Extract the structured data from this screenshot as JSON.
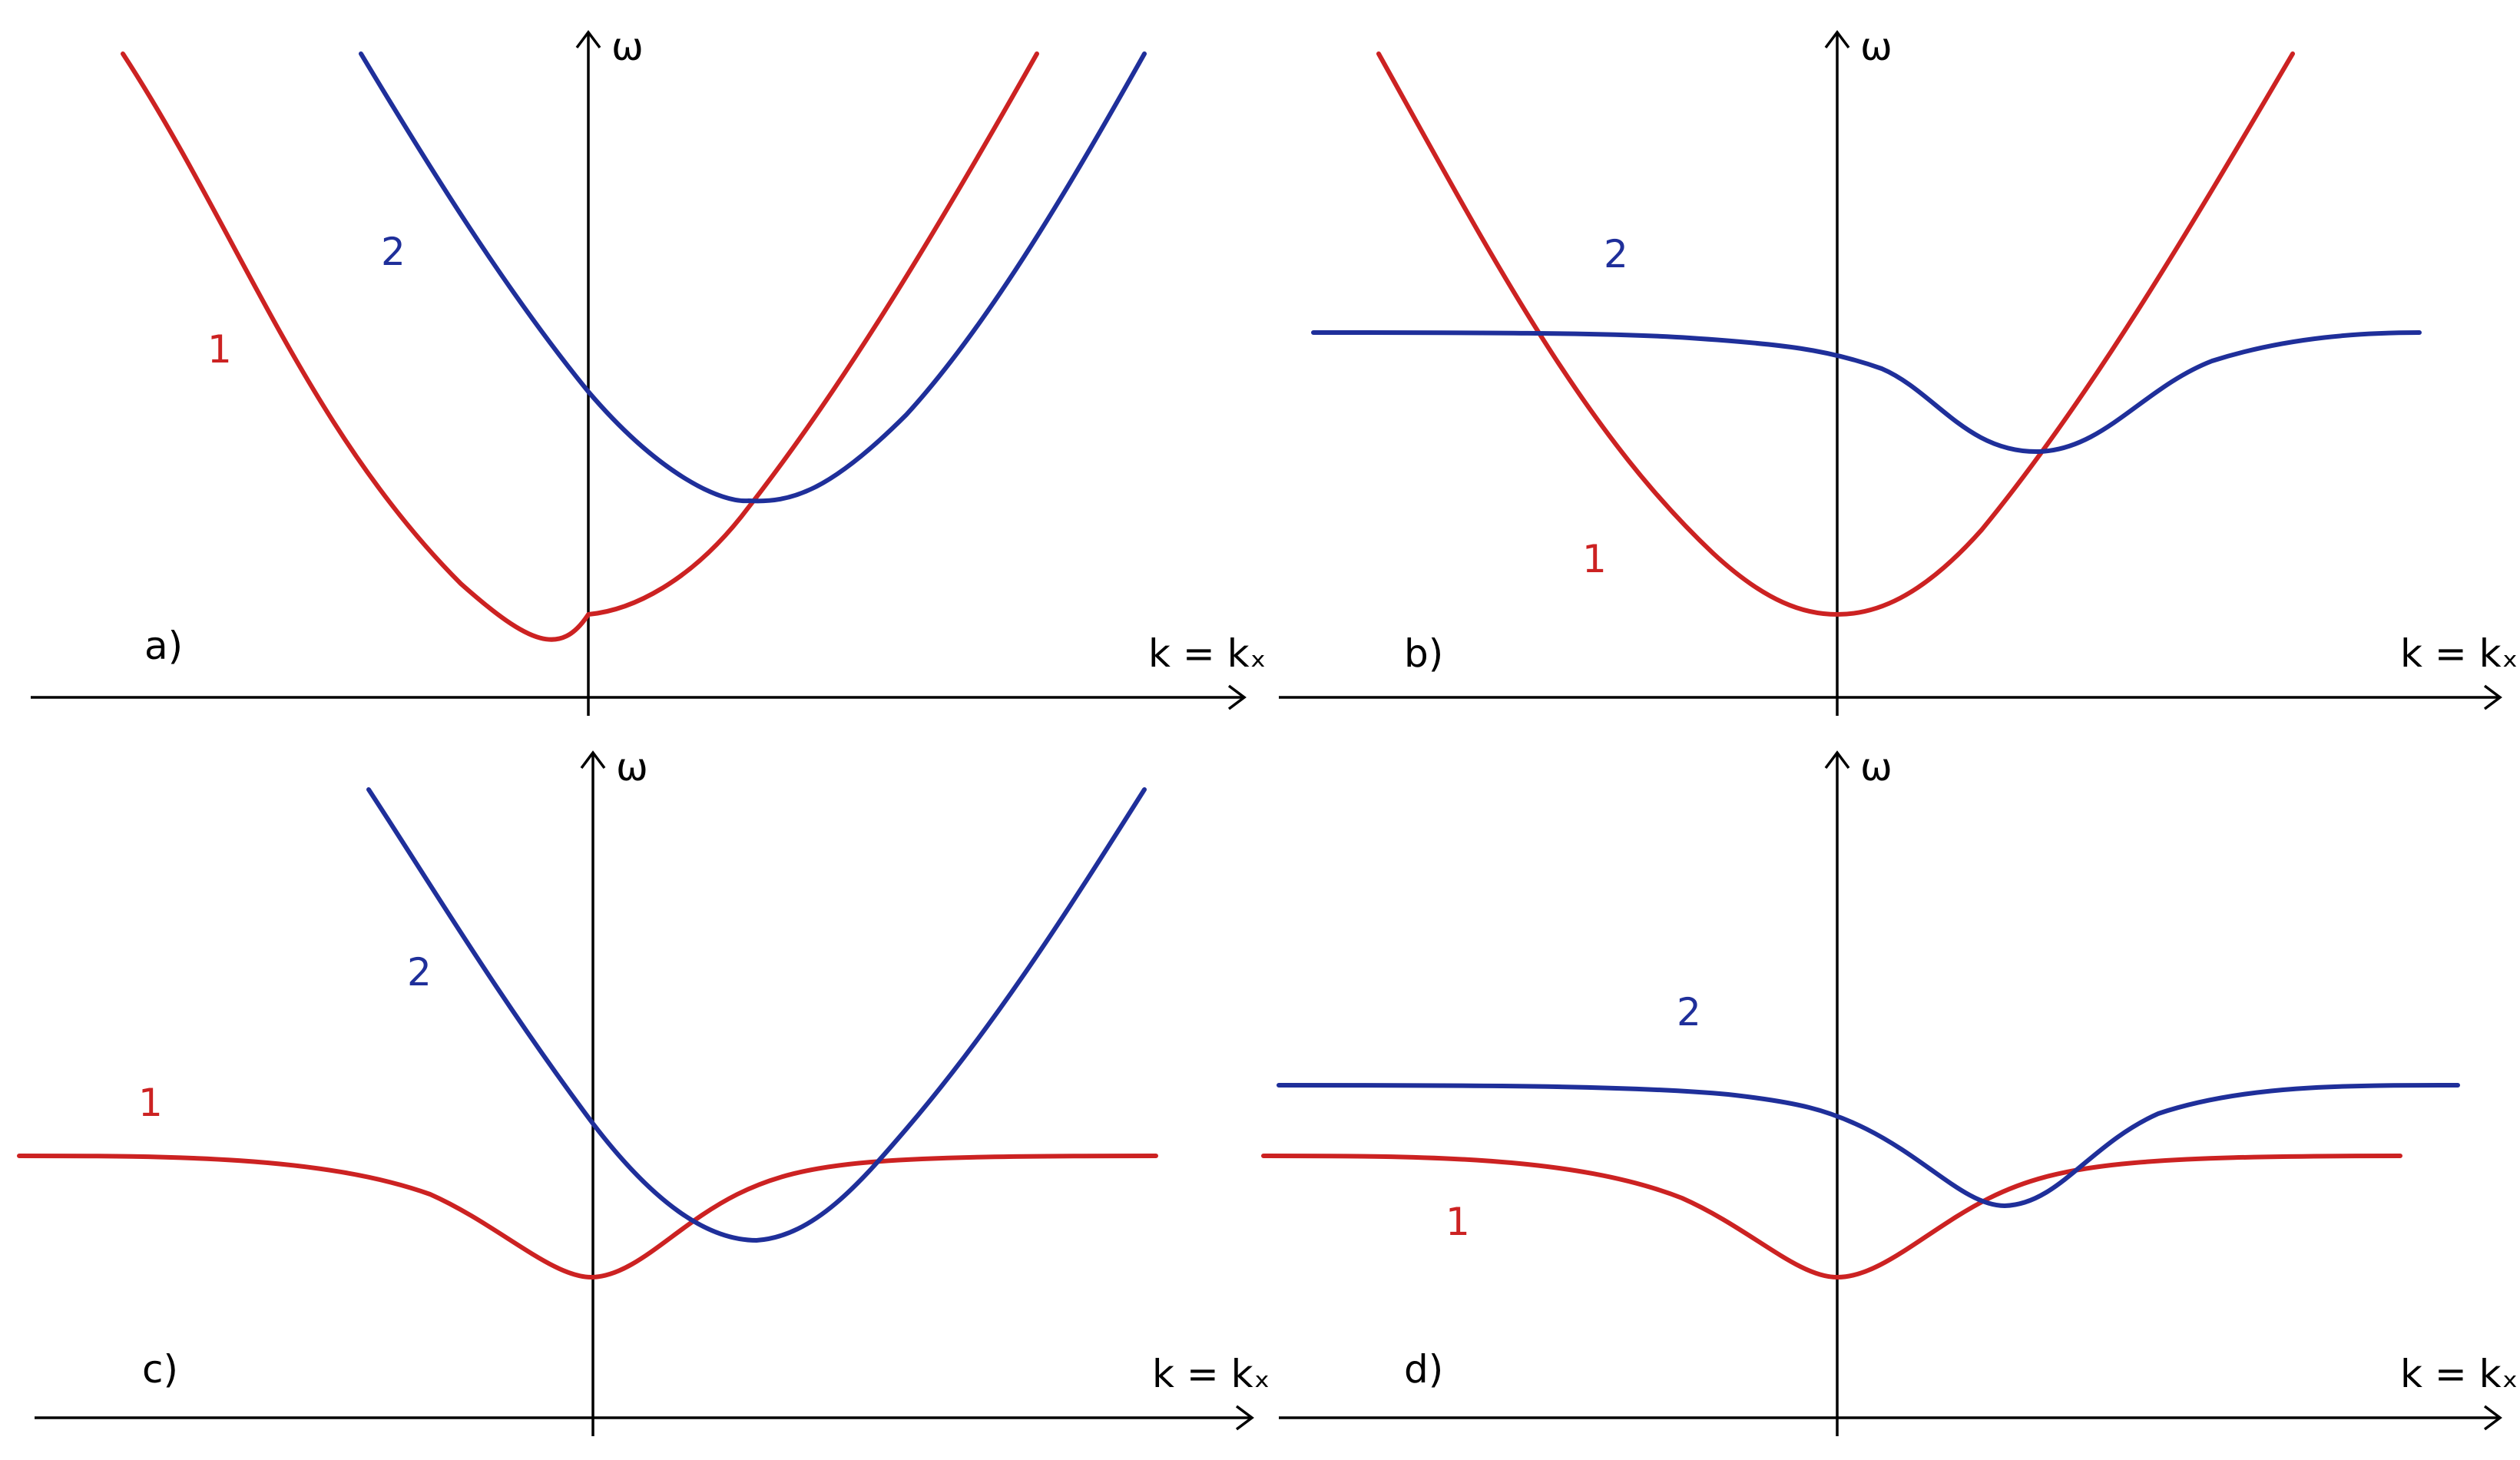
{
  "colors": {
    "curve1": "#cc2222",
    "curve2": "#1f2f9a",
    "axis": "#000000"
  },
  "axes": {
    "y_label": "ω",
    "x_label": "k = kₓ"
  },
  "panels": [
    {
      "id": "a",
      "label": "a)",
      "curve1_label": "1",
      "curve2_label": "2"
    },
    {
      "id": "b",
      "label": "b)",
      "curve1_label": "1",
      "curve2_label": "2"
    },
    {
      "id": "c",
      "label": "c)",
      "curve1_label": "1",
      "curve2_label": "2"
    },
    {
      "id": "d",
      "label": "d)",
      "curve1_label": "1",
      "curve2_label": "2"
    }
  ]
}
